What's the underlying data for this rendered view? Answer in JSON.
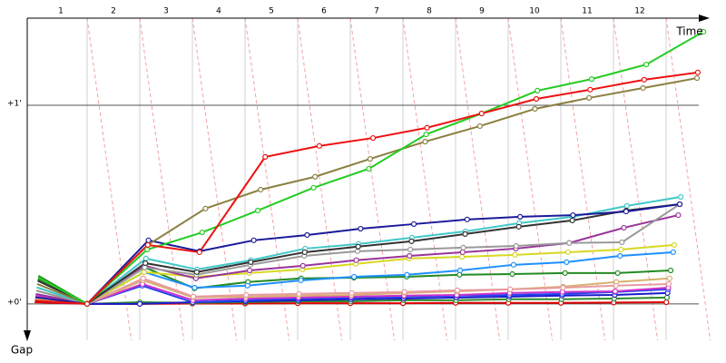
{
  "chart_data": {
    "type": "line",
    "x_label": "Time",
    "y_label": "Gap",
    "x": [
      0,
      1,
      2,
      3,
      4,
      5,
      6,
      7,
      8,
      9,
      10,
      11,
      12
    ],
    "xlim": [
      0,
      12
    ],
    "xticks": [
      1,
      2,
      3,
      4,
      5,
      6,
      7,
      8,
      9,
      10,
      11,
      12
    ],
    "ylim": [
      -11,
      86.3
    ],
    "yticks": [
      {
        "value": 0,
        "label": "+0'"
      },
      {
        "value": 60,
        "label": "+1'"
      }
    ],
    "grid": true,
    "series": [
      {
        "color": "#e00000",
        "values": [
          0.5,
          0,
          0,
          0.1,
          0.1,
          0.2,
          0.2,
          0.2,
          0.3,
          0.3,
          0.3,
          0.4,
          0.5
        ]
      },
      {
        "color": "#2e8b2e",
        "values": [
          7.5,
          0,
          0.5,
          0.3,
          0.5,
          0.8,
          0.8,
          1.1,
          1.1,
          1.4,
          1.4,
          1.6,
          1.9
        ]
      },
      {
        "color": "#1a1acc",
        "values": [
          1.5,
          0,
          0,
          0.5,
          0.8,
          1.1,
          1.4,
          1.6,
          1.9,
          2.2,
          2.5,
          2.7,
          3.3
        ]
      },
      {
        "color": "#2244ee",
        "values": [
          1,
          0,
          5.5,
          0.5,
          1.1,
          1.6,
          1.9,
          2.2,
          2.5,
          2.7,
          3,
          3.6,
          4.4
        ]
      },
      {
        "color": "#cc33cc",
        "values": [
          2.5,
          0,
          6,
          1.1,
          1.6,
          1.9,
          2.2,
          2.5,
          2.7,
          3.3,
          3.6,
          3.8,
          4.9
        ]
      },
      {
        "color": "#d8b070",
        "values": [
          1.5,
          0,
          7.1,
          1.9,
          2.2,
          2.5,
          2.7,
          3.3,
          3.8,
          4.4,
          5.2,
          6.6,
          7.7
        ]
      },
      {
        "color": "#e89aa0",
        "values": [
          2,
          0,
          7.7,
          2.2,
          2.7,
          3,
          3.3,
          3.6,
          4.1,
          4.4,
          4.9,
          5.5,
          6
        ]
      },
      {
        "color": "#228b22",
        "values": [
          8.5,
          0,
          11,
          4.7,
          6.6,
          7.7,
          7.9,
          8.2,
          8.8,
          9,
          9.3,
          9.3,
          10.1
        ]
      },
      {
        "color": "#1e90ff",
        "values": [
          3,
          0,
          9.6,
          4.9,
          5.5,
          7.1,
          8.2,
          8.8,
          10.1,
          11.8,
          12.6,
          14.5,
          15.6
        ]
      },
      {
        "color": "#d8d820",
        "values": [
          4,
          0,
          9.6,
          8.2,
          9.3,
          10.4,
          12.1,
          13.7,
          14.2,
          14.8,
          15.6,
          16.4,
          17.8
        ]
      },
      {
        "color": "#993399",
        "values": [
          3,
          0,
          11.5,
          7.7,
          10.1,
          11.5,
          13.2,
          14.5,
          15.6,
          16.7,
          18.4,
          23,
          26.8
        ]
      },
      {
        "color": "#999999",
        "values": [
          4,
          0,
          11,
          8.8,
          11.8,
          14.5,
          15.9,
          16.4,
          17,
          17.5,
          18.4,
          18.6,
          30.1
        ]
      },
      {
        "color": "#40c8c8",
        "values": [
          5,
          0,
          13.7,
          10.4,
          13.2,
          16.7,
          18.1,
          20,
          21.9,
          24.4,
          26.3,
          29.6,
          32.3
        ]
      },
      {
        "color": "#333333",
        "values": [
          7,
          0,
          12.3,
          9.6,
          12.6,
          15.6,
          17.3,
          18.9,
          21.1,
          23.3,
          25.2,
          28.2,
          30.1
        ]
      },
      {
        "color": "#1a1a99",
        "values": [
          2,
          0,
          19.2,
          15.9,
          19.2,
          20.8,
          22.7,
          24.1,
          25.5,
          26.3,
          26.8,
          27.9,
          30.1
        ]
      },
      {
        "color": "#8b8040",
        "values": [
          6,
          0,
          17.8,
          28.8,
          34.5,
          38.4,
          43.8,
          49,
          53.7,
          58.9,
          62.2,
          65.2,
          68.2
        ]
      },
      {
        "color": "#22cc22",
        "values": [
          8,
          0,
          16.4,
          21.6,
          28.2,
          35.1,
          40.8,
          51.2,
          57.5,
          64.4,
          67.9,
          72.3,
          82.2
        ]
      },
      {
        "color": "#ee1111",
        "values": [
          1,
          0,
          17.8,
          15.6,
          44.4,
          47.7,
          50.1,
          53.2,
          57.5,
          61.9,
          64.7,
          67.7,
          69.9
        ]
      }
    ]
  }
}
